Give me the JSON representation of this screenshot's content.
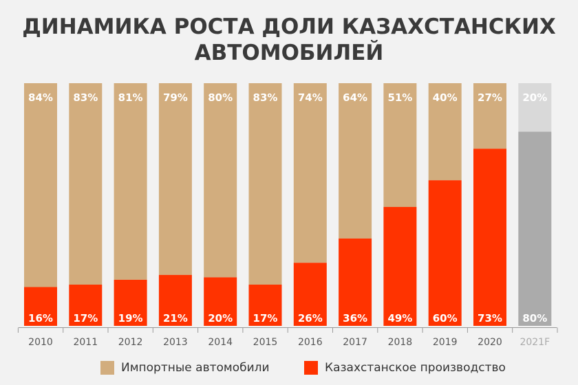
{
  "title": {
    "line1": "ДИНАМИКА РОСТА ДОЛИ КАЗАХСТАНСКИХ",
    "line2": "АВТОМОБИЛЕЙ"
  },
  "colors": {
    "import": "#d2ad7e",
    "local": "#ff3300",
    "forecast_top": "#d9d9d9",
    "forecast_bottom": "#ababab",
    "axis": "#999999",
    "tick_label": "#555555",
    "tick_label_forecast": "#aaaaaa"
  },
  "legend": {
    "import_label": "Импортные автомобили",
    "local_label": "Казахстанское производство"
  },
  "chart_data": {
    "type": "bar",
    "stacked": true,
    "percent": true,
    "categories": [
      "2010",
      "2011",
      "2012",
      "2013",
      "2014",
      "2015",
      "2016",
      "2017",
      "2018",
      "2019",
      "2020",
      "2021F"
    ],
    "forecast_category": "2021F",
    "series": [
      {
        "name": "Казахстанское производство",
        "values": [
          16,
          17,
          19,
          21,
          20,
          17,
          26,
          36,
          49,
          60,
          73,
          80
        ]
      },
      {
        "name": "Импортные автомобили",
        "values": [
          84,
          83,
          81,
          79,
          80,
          83,
          74,
          64,
          51,
          40,
          27,
          20
        ]
      }
    ],
    "ylim": [
      0,
      100
    ],
    "grid": false,
    "legend_position": "bottom"
  }
}
